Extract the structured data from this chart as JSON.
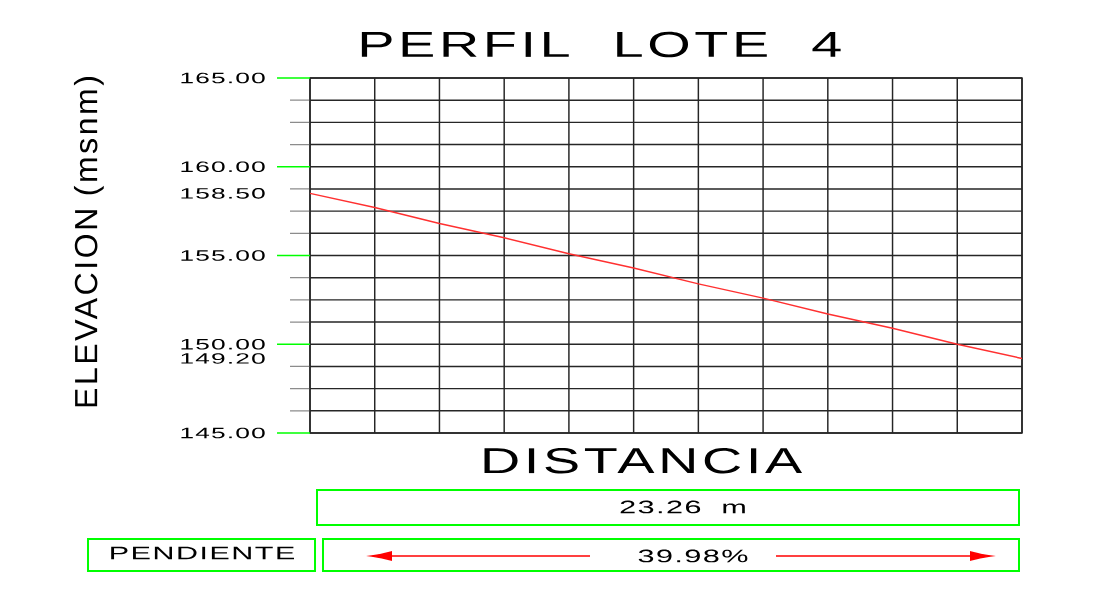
{
  "chart_data": {
    "type": "line",
    "title": "PERFIL LOTE 4",
    "xlabel": "DISTANCIA",
    "ylabel": "ELEVACION (msnm)",
    "categories": [
      null,
      null,
      null,
      null,
      null,
      null,
      null,
      null,
      null,
      null,
      null,
      null
    ],
    "values": [
      158.5,
      157.7,
      156.8,
      156.0,
      155.1,
      154.3,
      153.4,
      152.6,
      151.7,
      150.9,
      150.0,
      149.2
    ],
    "color": "#ff3030",
    "ylim": [
      145,
      165
    ],
    "yticks": [
      {
        "value": 145,
        "label": "145.00"
      },
      {
        "value": 146.25,
        "label": null
      },
      {
        "value": 147.5,
        "label": null
      },
      {
        "value": 148.75,
        "label": null
      },
      {
        "value": 149.2,
        "label": "149.20"
      },
      {
        "value": 150,
        "label": "150.00"
      },
      {
        "value": 151.25,
        "label": null
      },
      {
        "value": 152.5,
        "label": null
      },
      {
        "value": 153.75,
        "label": null
      },
      {
        "value": 155,
        "label": "155.00"
      },
      {
        "value": 156.25,
        "label": null
      },
      {
        "value": 157.5,
        "label": null
      },
      {
        "value": 158.5,
        "label": "158.50"
      },
      {
        "value": 158.75,
        "label": null
      },
      {
        "value": 160,
        "label": "160.00"
      },
      {
        "value": 161.25,
        "label": null
      },
      {
        "value": 162.5,
        "label": null
      },
      {
        "value": 163.75,
        "label": null
      },
      {
        "value": 165,
        "label": "165.00"
      }
    ],
    "grid": true,
    "tick_labels": "y",
    "annotations": [
      "23.26 m",
      "PENDIENTE",
      "39.98%"
    ]
  }
}
